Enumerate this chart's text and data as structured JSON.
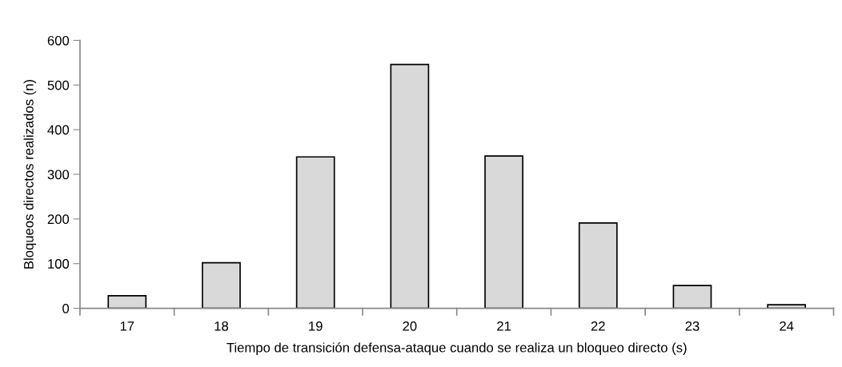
{
  "chart_data": {
    "type": "bar",
    "xlabel": "Tiempo de transición defensa-ataque cuando se realiza un bloqueo directo (s)",
    "ylabel": "Bloqueos directos realizados (n)",
    "categories": [
      "17",
      "18",
      "19",
      "20",
      "21",
      "22",
      "23",
      "24"
    ],
    "values": [
      28,
      102,
      339,
      546,
      341,
      191,
      51,
      8
    ],
    "color": "#d9d9d9",
    "ylim": [
      0,
      600
    ],
    "yticks": [
      0,
      100,
      200,
      300,
      400,
      500,
      600
    ],
    "grid": false
  }
}
